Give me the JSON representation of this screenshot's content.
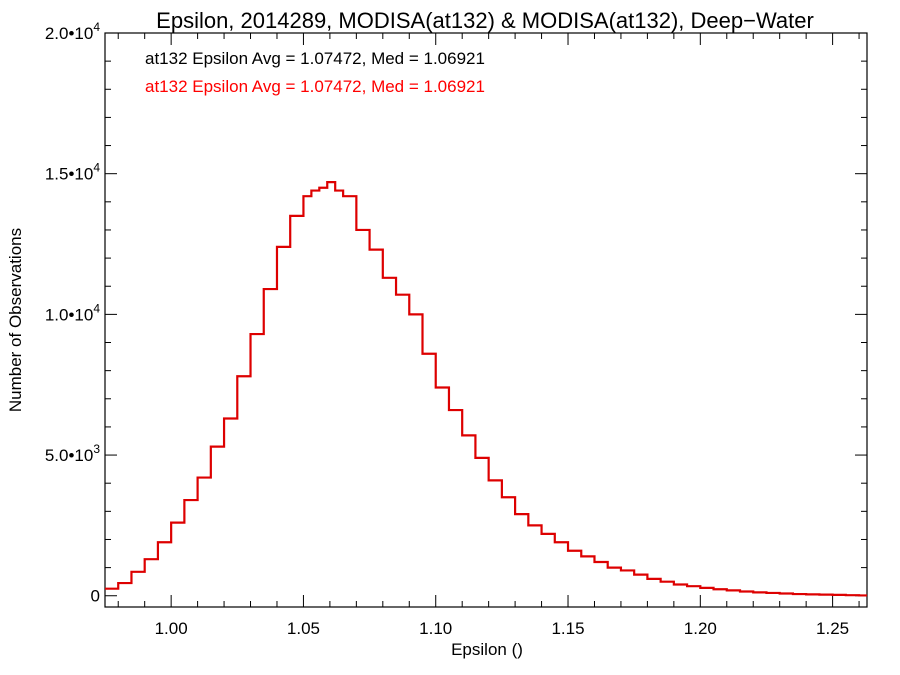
{
  "chart_data": {
    "type": "histogram",
    "title": "Epsilon, 2014289, MODISA(at132) & MODISA(at132), Deep−Water",
    "xlabel": "Epsilon ()",
    "ylabel": "Number of Observations",
    "xlim": [
      0.975,
      1.263
    ],
    "ylim": [
      -400,
      20000
    ],
    "x_ticks": [
      {
        "value": 1.0,
        "label": "1.00"
      },
      {
        "value": 1.05,
        "label": "1.05"
      },
      {
        "value": 1.1,
        "label": "1.10"
      },
      {
        "value": 1.15,
        "label": "1.15"
      },
      {
        "value": 1.2,
        "label": "1.20"
      },
      {
        "value": 1.25,
        "label": "1.25"
      }
    ],
    "y_ticks": [
      {
        "value": 0,
        "mantissa": "0",
        "exponent": ""
      },
      {
        "value": 5000,
        "mantissa": "5.0•10",
        "exponent": "3"
      },
      {
        "value": 10000,
        "mantissa": "1.0•10",
        "exponent": "4"
      },
      {
        "value": 15000,
        "mantissa": "1.5•10",
        "exponent": "4"
      },
      {
        "value": 20000,
        "mantissa": "2.0•10",
        "exponent": "4"
      }
    ],
    "annotations": [
      {
        "text": "at132 Epsilon Avg = 1.07472, Med = 1.06921",
        "color": "#000000"
      },
      {
        "text": "at132 Epsilon Avg = 1.07472, Med = 1.06921",
        "color": "#ff0000"
      }
    ],
    "series": [
      {
        "color": "#dd0000",
        "x": [
          0.975,
          0.98,
          0.985,
          0.99,
          0.995,
          1.0,
          1.005,
          1.01,
          1.015,
          1.02,
          1.025,
          1.03,
          1.035,
          1.04,
          1.045,
          1.05,
          1.053,
          1.056,
          1.059,
          1.062,
          1.065,
          1.07,
          1.075,
          1.08,
          1.085,
          1.09,
          1.095,
          1.1,
          1.105,
          1.11,
          1.115,
          1.12,
          1.125,
          1.13,
          1.135,
          1.14,
          1.145,
          1.15,
          1.155,
          1.16,
          1.165,
          1.17,
          1.175,
          1.18,
          1.185,
          1.19,
          1.195,
          1.2,
          1.205,
          1.21,
          1.215,
          1.22,
          1.225,
          1.23,
          1.235,
          1.24,
          1.245,
          1.25,
          1.255,
          1.26,
          1.263
        ],
        "values": [
          250,
          450,
          850,
          1300,
          1900,
          2600,
          3400,
          4200,
          5300,
          6300,
          7800,
          9300,
          10900,
          12400,
          13500,
          14200,
          14400,
          14500,
          14700,
          14400,
          14200,
          13000,
          12300,
          11300,
          10700,
          10000,
          8600,
          7400,
          6600,
          5700,
          4900,
          4100,
          3500,
          2900,
          2500,
          2200,
          1900,
          1600,
          1400,
          1200,
          1000,
          900,
          750,
          600,
          500,
          400,
          340,
          280,
          230,
          190,
          150,
          120,
          100,
          80,
          60,
          50,
          40,
          30,
          20,
          10,
          5
        ]
      }
    ]
  }
}
